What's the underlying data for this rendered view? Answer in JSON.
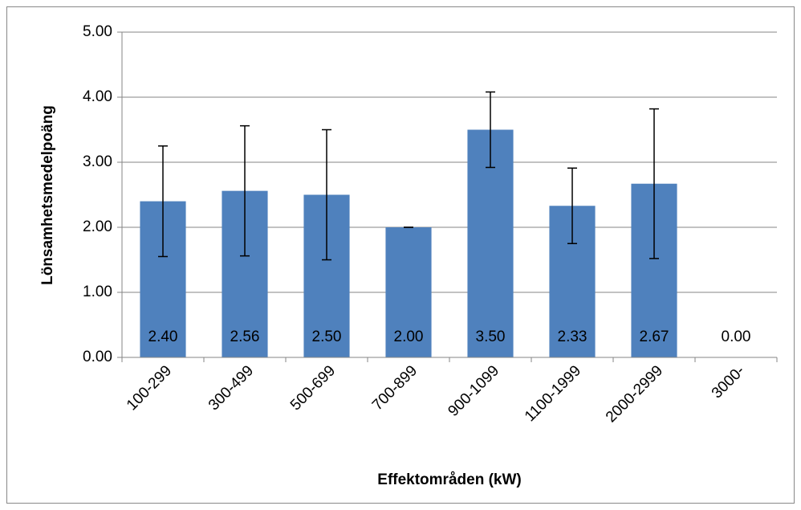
{
  "chart_data": {
    "type": "bar",
    "x_label": "Effektområden (kW)",
    "y_label": "Lönsamhetsmedelpoäng",
    "categories": [
      "100-299",
      "300-499",
      "500-699",
      "700-899",
      "900-1099",
      "1100-1999",
      "2000-2999",
      "3000-"
    ],
    "values": [
      2.4,
      2.56,
      2.5,
      2.0,
      3.5,
      2.33,
      2.67,
      0.0
    ],
    "value_labels": [
      "2.40",
      "2.56",
      "2.50",
      "2.00",
      "3.50",
      "2.33",
      "2.67",
      "0.00"
    ],
    "errors": [
      0.85,
      1.0,
      1.0,
      0,
      0.58,
      0.58,
      1.15,
      0
    ],
    "color": "#4f81bd",
    "ylim": [
      0,
      5
    ],
    "yticks": [
      {
        "value": 0,
        "label": "0.00"
      },
      {
        "value": 1,
        "label": "1.00"
      },
      {
        "value": 2,
        "label": "2.00"
      },
      {
        "value": 3,
        "label": "3.00"
      },
      {
        "value": 4,
        "label": "4.00"
      },
      {
        "value": 5,
        "label": "5.00"
      }
    ],
    "grid": true
  }
}
